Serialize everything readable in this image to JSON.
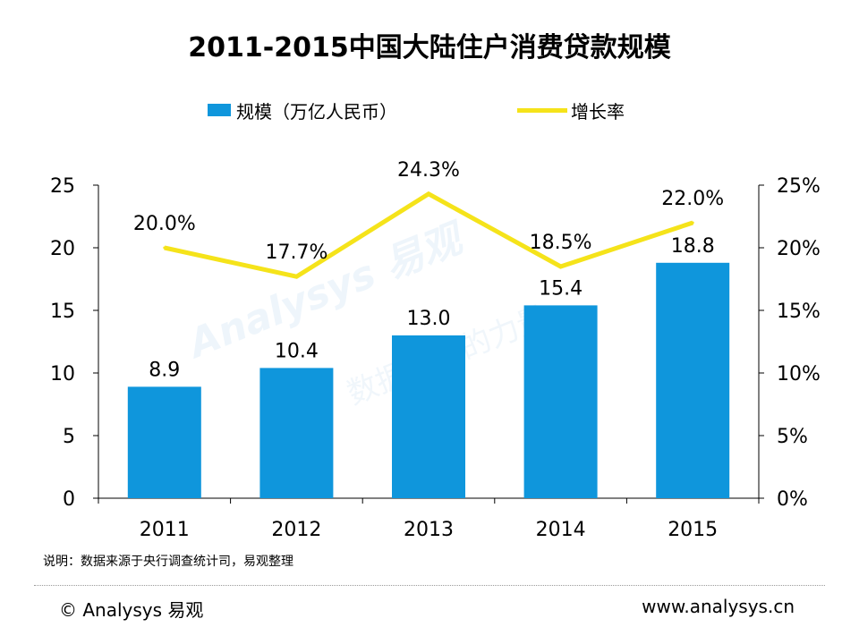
{
  "title": "2011-2015中国大陆住户消费贷款规模",
  "legend": {
    "bar_label": "规模（万亿人民币）",
    "line_label": "增长率"
  },
  "colors": {
    "bar": "#0f96dc",
    "line": "#f5e31a",
    "axis": "#000000",
    "watermark": "#e8f2fa"
  },
  "watermark": {
    "text": "Analysys 易观",
    "slogan": "数据驱动的力量"
  },
  "chart_data": {
    "type": "bar",
    "title": "2011-2015中国大陆住户消费贷款规模",
    "categories": [
      "2011",
      "2012",
      "2013",
      "2014",
      "2015"
    ],
    "series": [
      {
        "name": "规模（万亿人民币）",
        "type": "bar",
        "axis": "left",
        "values": [
          8.9,
          10.4,
          13.0,
          15.4,
          18.8
        ],
        "labels": [
          "8.9",
          "10.4",
          "13.0",
          "15.4",
          "18.8"
        ]
      },
      {
        "name": "增长率",
        "type": "line",
        "axis": "right",
        "values": [
          20.0,
          17.7,
          24.3,
          18.5,
          22.0
        ],
        "labels": [
          "20.0%",
          "17.7%",
          "24.3%",
          "18.5%",
          "22.0%"
        ]
      }
    ],
    "y_left": {
      "min": 0,
      "max": 25,
      "ticks": [
        "0",
        "5",
        "10",
        "15",
        "20",
        "25"
      ]
    },
    "y_right": {
      "min": 0,
      "max": 25,
      "ticks": [
        "0%",
        "5%",
        "10%",
        "15%",
        "20%",
        "25%"
      ]
    },
    "legend_position": "top",
    "grid": false
  },
  "note": "说明：数据来源于央行调查统计司，易观整理",
  "footer": {
    "left": "© Analysys 易观",
    "right": "www.analysys.cn"
  }
}
